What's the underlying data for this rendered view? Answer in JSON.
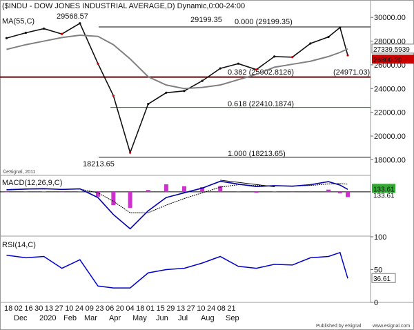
{
  "header": {
    "title": "($INDU - DOW JONES INDUSTRIAL AVERAGE,D) Dynamic,0:00-24:00",
    "ma_label": "MA(55,C)",
    "watermark": "©eSignal, 2011"
  },
  "footer": {
    "published": "Published by eSignal",
    "url": "www.esignal.com",
    "months": [
      "Dec",
      "2020",
      "Feb",
      "Mar",
      "Apr",
      "May",
      "Jun",
      "Jul",
      "Aug",
      "Sep"
    ],
    "days": [
      "18",
      "02",
      "16",
      "30",
      "13",
      "27",
      "10",
      "24",
      "09",
      "23",
      "06",
      "20",
      "04",
      "18",
      "01",
      "15",
      "29",
      "13",
      "27",
      "10",
      "24",
      "08",
      "21"
    ]
  },
  "colors": {
    "price_up": "#111111",
    "price_down": "#cc0000",
    "ma": "#808080",
    "macd": "#0000aa",
    "signal": "#000000",
    "hist": "#cc33cc",
    "rsi": "#0000cc",
    "support": "#660000",
    "fib_618": "#1a7a1a",
    "badge_red": "#cc0000"
  },
  "price_panel": {
    "annotations": {
      "high_left": "29568.57",
      "high_right": "29199.35",
      "low": "18213.65",
      "fib_000": "0.000 (29199.35)",
      "fib_382": "0.382 (25002.8126)",
      "fib_618": "0.618 (22410.1874)",
      "fib_100": "1.000 (18213.65)",
      "support": "(24971.03)"
    },
    "axis_ticks": [
      "30000.00",
      "28000.00",
      "26000.00",
      "24000.00",
      "22000.00",
      "20000.00",
      "18000.00"
    ],
    "badges": {
      "ma_value": "27339.5939",
      "last": "26800.20"
    }
  },
  "macd_panel": {
    "label": "MACD(12,26,9,C)",
    "badge_value": "133.61",
    "badge_under": "133.61"
  },
  "rsi_panel": {
    "label": "RSI(14,C)",
    "axis_ticks": [
      "100",
      "50",
      "0"
    ],
    "badge_value": "36.61"
  },
  "chart_data": [
    {
      "type": "line",
      "name": "price",
      "x": [
        "2019-12-18",
        "2020-01-02",
        "2020-01-16",
        "2020-01-30",
        "2020-02-13",
        "2020-02-27",
        "2020-03-10",
        "2020-03-23",
        "2020-04-06",
        "2020-04-20",
        "2020-05-04",
        "2020-05-18",
        "2020-06-01",
        "2020-06-15",
        "2020-06-29",
        "2020-07-13",
        "2020-07-27",
        "2020-08-10",
        "2020-08-24",
        "2020-09-02",
        "2020-09-08"
      ],
      "y": [
        28250,
        28700,
        29050,
        28600,
        29500,
        26100,
        23400,
        18600,
        22700,
        23650,
        23800,
        24650,
        25700,
        26100,
        25600,
        26700,
        26650,
        27800,
        28350,
        29150,
        26800
      ],
      "ma55": [
        27300,
        27700,
        28000,
        28300,
        28500,
        28400,
        27700,
        26500,
        25000,
        24300,
        24000,
        24100,
        24300,
        24750,
        25200,
        25800,
        26050,
        26300,
        26700,
        27050,
        27340
      ],
      "ylim": [
        17500,
        31000
      ],
      "levels": [
        29199.35,
        25002.8126,
        22410.1874,
        18213.65,
        24971.03
      ]
    },
    {
      "type": "line",
      "name": "macd",
      "x": [
        "2019-12-18",
        "2020-01-02",
        "2020-01-16",
        "2020-01-30",
        "2020-02-13",
        "2020-02-27",
        "2020-03-10",
        "2020-03-23",
        "2020-04-06",
        "2020-04-20",
        "2020-05-04",
        "2020-05-18",
        "2020-06-01",
        "2020-06-15",
        "2020-06-29",
        "2020-07-13",
        "2020-07-27",
        "2020-08-10",
        "2020-08-24",
        "2020-09-02",
        "2020-09-08"
      ],
      "macd": [
        110,
        150,
        170,
        130,
        160,
        -300,
        -1200,
        -1950,
        -1000,
        -300,
        -50,
        200,
        560,
        410,
        280,
        330,
        300,
        380,
        540,
        360,
        133.61
      ],
      "signal": [
        130,
        140,
        150,
        140,
        150,
        -50,
        -500,
        -1100,
        -1100,
        -700,
        -350,
        -50,
        250,
        380,
        330,
        320,
        310,
        340,
        420,
        440,
        410
      ],
      "histogram": [
        -20,
        10,
        20,
        -10,
        10,
        -250,
        -700,
        -850,
        100,
        400,
        300,
        250,
        310,
        30,
        -50,
        10,
        -10,
        40,
        120,
        -80,
        -277
      ],
      "ylim": [
        -2300,
        800
      ]
    },
    {
      "type": "line",
      "name": "rsi",
      "x": [
        "2019-12-18",
        "2020-01-02",
        "2020-01-16",
        "2020-01-30",
        "2020-02-13",
        "2020-02-27",
        "2020-03-10",
        "2020-03-23",
        "2020-04-06",
        "2020-04-20",
        "2020-05-04",
        "2020-05-18",
        "2020-06-01",
        "2020-06-15",
        "2020-06-29",
        "2020-07-13",
        "2020-07-27",
        "2020-08-10",
        "2020-08-24",
        "2020-09-02",
        "2020-09-08"
      ],
      "y": [
        72,
        68,
        70,
        52,
        65,
        25,
        22,
        22,
        45,
        50,
        52,
        60,
        70,
        55,
        52,
        58,
        57,
        68,
        70,
        76,
        36.61
      ],
      "ylim": [
        0,
        100
      ]
    }
  ]
}
